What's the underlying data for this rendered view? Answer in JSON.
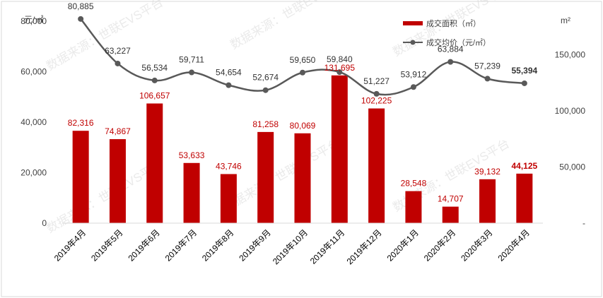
{
  "watermark": "数据来源：世联EVS平台",
  "chart_data": {
    "type": "bar+line",
    "categories": [
      "2019年4月",
      "2019年5月",
      "2019年6月",
      "2019年7月",
      "2019年8月",
      "2019年9月",
      "2019年10月",
      "2019年11月",
      "2019年12月",
      "2020年1月",
      "2020年2月",
      "2020年3月",
      "2020年4月"
    ],
    "series": [
      {
        "name": "成交面积（㎡）",
        "type": "bar",
        "axis": "right",
        "color": "#c00000",
        "values": [
          82316,
          74867,
          106657,
          53633,
          43746,
          81258,
          80069,
          131695,
          102225,
          28548,
          14707,
          39132,
          44125
        ],
        "labels": [
          "82,316",
          "74,867",
          "106,657",
          "53,633",
          "43,746",
          "81,258",
          "80,069",
          "131,695",
          "102,225",
          "28,548",
          "14,707",
          "39,132",
          "44,125"
        ]
      },
      {
        "name": "成交均价（元/㎡）",
        "type": "line",
        "axis": "left",
        "color": "#595959",
        "values": [
          80885,
          63227,
          56534,
          59711,
          54654,
          52674,
          59650,
          59840,
          51227,
          53912,
          63884,
          57239,
          55394
        ],
        "labels": [
          "80,885",
          "63,227",
          "56,534",
          "59,711",
          "54,654",
          "52,674",
          "59,650",
          "59,840",
          "51,227",
          "53,912",
          "63,884",
          "57,239",
          "55,394"
        ]
      }
    ],
    "left_axis": {
      "unit": "元/㎡",
      "ylim": [
        0,
        80000
      ],
      "ticks": [
        0,
        20000,
        40000,
        60000,
        80000
      ],
      "tick_labels": [
        "0",
        "20,000",
        "40,000",
        "60,000",
        "80,000"
      ]
    },
    "right_axis": {
      "unit": "m²",
      "ylim": [
        0,
        180000
      ],
      "ticks": [
        0,
        50000,
        100000,
        150000
      ],
      "tick_labels": [
        "-",
        "50,000",
        "100,000",
        "150,000"
      ]
    },
    "legend_position": "top-right",
    "grid": false
  }
}
